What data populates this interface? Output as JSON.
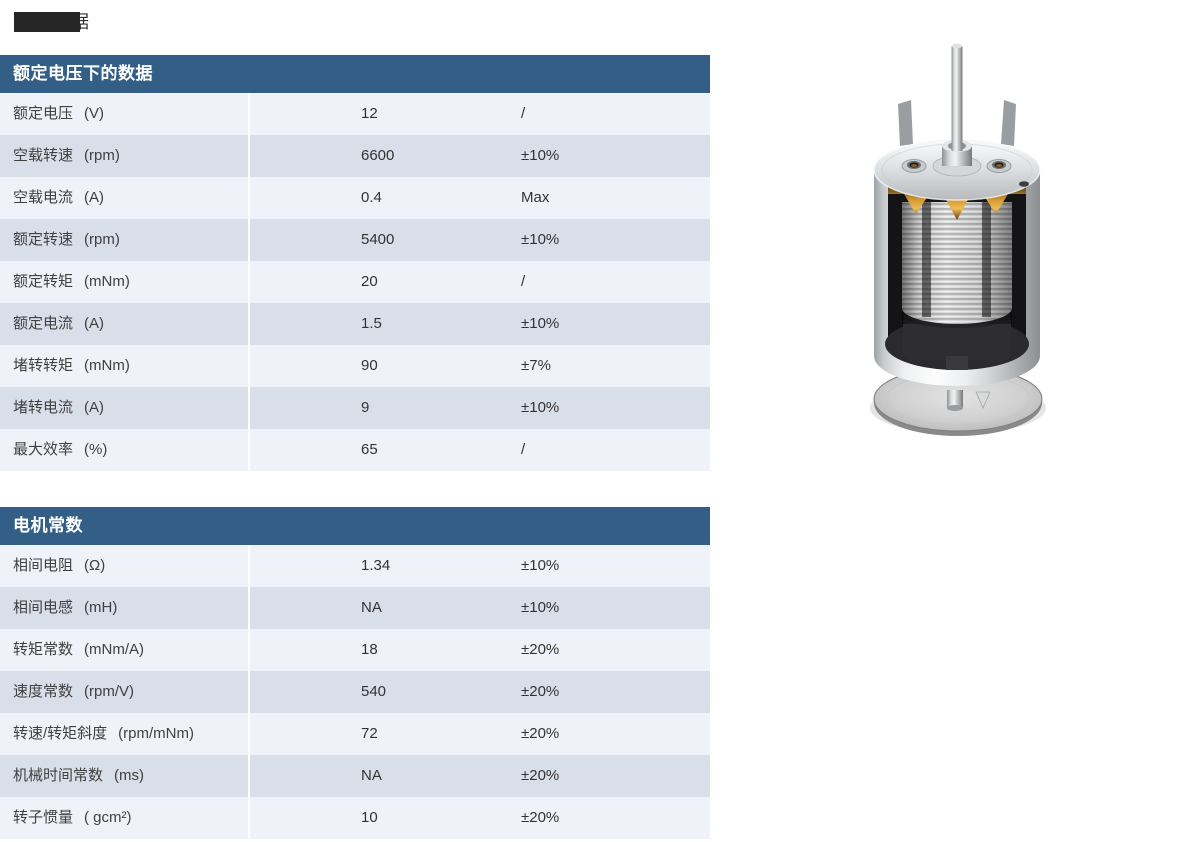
{
  "page": {
    "heading_partial": "据"
  },
  "colors": {
    "header_bg": "#335F86",
    "row_light": "#EFF2F9",
    "row_dark": "#D9DFE9"
  },
  "tables": [
    {
      "title": "额定电压下的数据",
      "rows": [
        {
          "name": "额定电压",
          "unit": "(V)",
          "value": "12",
          "tolerance": "/"
        },
        {
          "name": "空载转速",
          "unit": "(rpm)",
          "value": "6600",
          "tolerance": "±10%"
        },
        {
          "name": "空载电流",
          "unit": "(A)",
          "value": "0.4",
          "tolerance": "Max"
        },
        {
          "name": "额定转速",
          "unit": "(rpm)",
          "value": "5400",
          "tolerance": "±10%"
        },
        {
          "name": "额定转矩",
          "unit": "(mNm)",
          "value": "20",
          "tolerance": "/"
        },
        {
          "name": "额定电流",
          "unit": "(A)",
          "value": "1.5",
          "tolerance": "±10%"
        },
        {
          "name": "堵转转矩",
          "unit": "(mNm)",
          "value": "90",
          "tolerance": "±7%"
        },
        {
          "name": "堵转电流",
          "unit": "(A)",
          "value": "9",
          "tolerance": "±10%"
        },
        {
          "name": "最大效率",
          "unit": "(%)",
          "value": "65",
          "tolerance": "/"
        }
      ]
    },
    {
      "title": "电机常数",
      "rows": [
        {
          "name": "相间电阻",
          "unit": "(Ω)",
          "value": "1.34",
          "tolerance": "±10%"
        },
        {
          "name": "相间电感",
          "unit": "(mH)",
          "value": "NA",
          "tolerance": "±10%"
        },
        {
          "name": "转矩常数",
          "unit": "(mNm/A)",
          "value": "18",
          "tolerance": "±20%"
        },
        {
          "name": "速度常数",
          "unit": "(rpm/V)",
          "value": "540",
          "tolerance": "±20%"
        },
        {
          "name": "转速/转矩斜度",
          "unit": "(rpm/mNm)",
          "value": "72",
          "tolerance": "±20%"
        },
        {
          "name": "机械时间常数",
          "unit": "(ms)",
          "value": "NA",
          "tolerance": "±20%"
        },
        {
          "name": "转子惯量",
          "unit": "( gcm²)",
          "value": "10",
          "tolerance": "±20%"
        }
      ]
    }
  ]
}
